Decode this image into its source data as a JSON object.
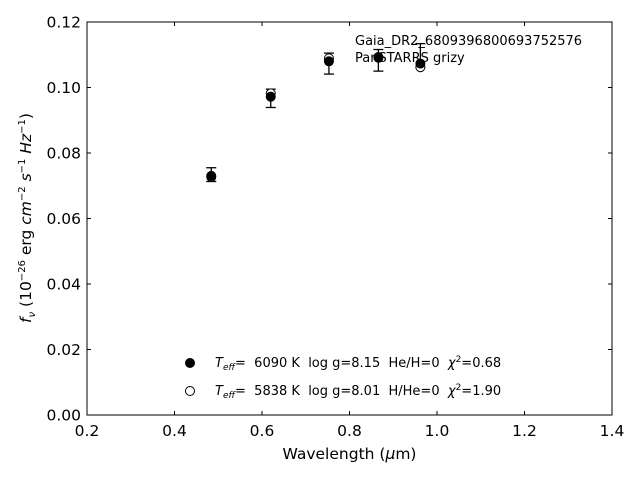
{
  "chart_data": {
    "type": "scatter",
    "xlabel": "Wavelength (μm)",
    "ylabel": "f_ν (10^−26 erg cm^−2 s^−1 Hz^−1)",
    "xlim": [
      0.2,
      1.4
    ],
    "ylim": [
      0.0,
      0.12
    ],
    "x_ticks": [
      "0.2",
      "0.4",
      "0.6",
      "0.8",
      "1.0",
      "1.2",
      "1.4"
    ],
    "y_ticks": [
      "0.00",
      "0.02",
      "0.04",
      "0.06",
      "0.08",
      "0.10",
      "0.12"
    ],
    "annotations": [
      "Gaia_DR2_6809396800693752576",
      "PanSTARRS grizy"
    ],
    "legend_placement": "lower-center",
    "grid": false,
    "series": [
      {
        "name": "Teff= 6090 K log g=8.15 He/H=0 χ2=0.68",
        "label_parts": {
          "teff": "6090 K",
          "logg": "log g=8.15",
          "comp": "He/H=0",
          "chi2": "=0.68"
        },
        "marker": "filled-circle",
        "x": [
          0.484,
          0.62,
          0.753,
          0.866,
          0.962
        ],
        "y": [
          0.073,
          0.0972,
          0.108,
          0.1091,
          0.1073
        ]
      },
      {
        "name": "Teff= 5838 K log g=8.01 H/He=0 χ2=1.90",
        "label_parts": {
          "teff": "5838 K",
          "logg": "log g=8.01",
          "comp": "H/He=0",
          "chi2": "=1.90"
        },
        "marker": "open-circle",
        "x": [
          0.484,
          0.62,
          0.753,
          0.866,
          0.962
        ],
        "y": [
          0.0727,
          0.0982,
          0.1089,
          0.1093,
          0.1062
        ]
      }
    ],
    "observed": {
      "x": [
        0.484,
        0.62,
        0.753,
        0.866,
        0.962
      ],
      "y": [
        0.0734,
        0.0967,
        0.1073,
        0.1083,
        0.1098
      ],
      "err": [
        0.0021,
        0.0028,
        0.0032,
        0.0033,
        0.0036
      ]
    }
  }
}
